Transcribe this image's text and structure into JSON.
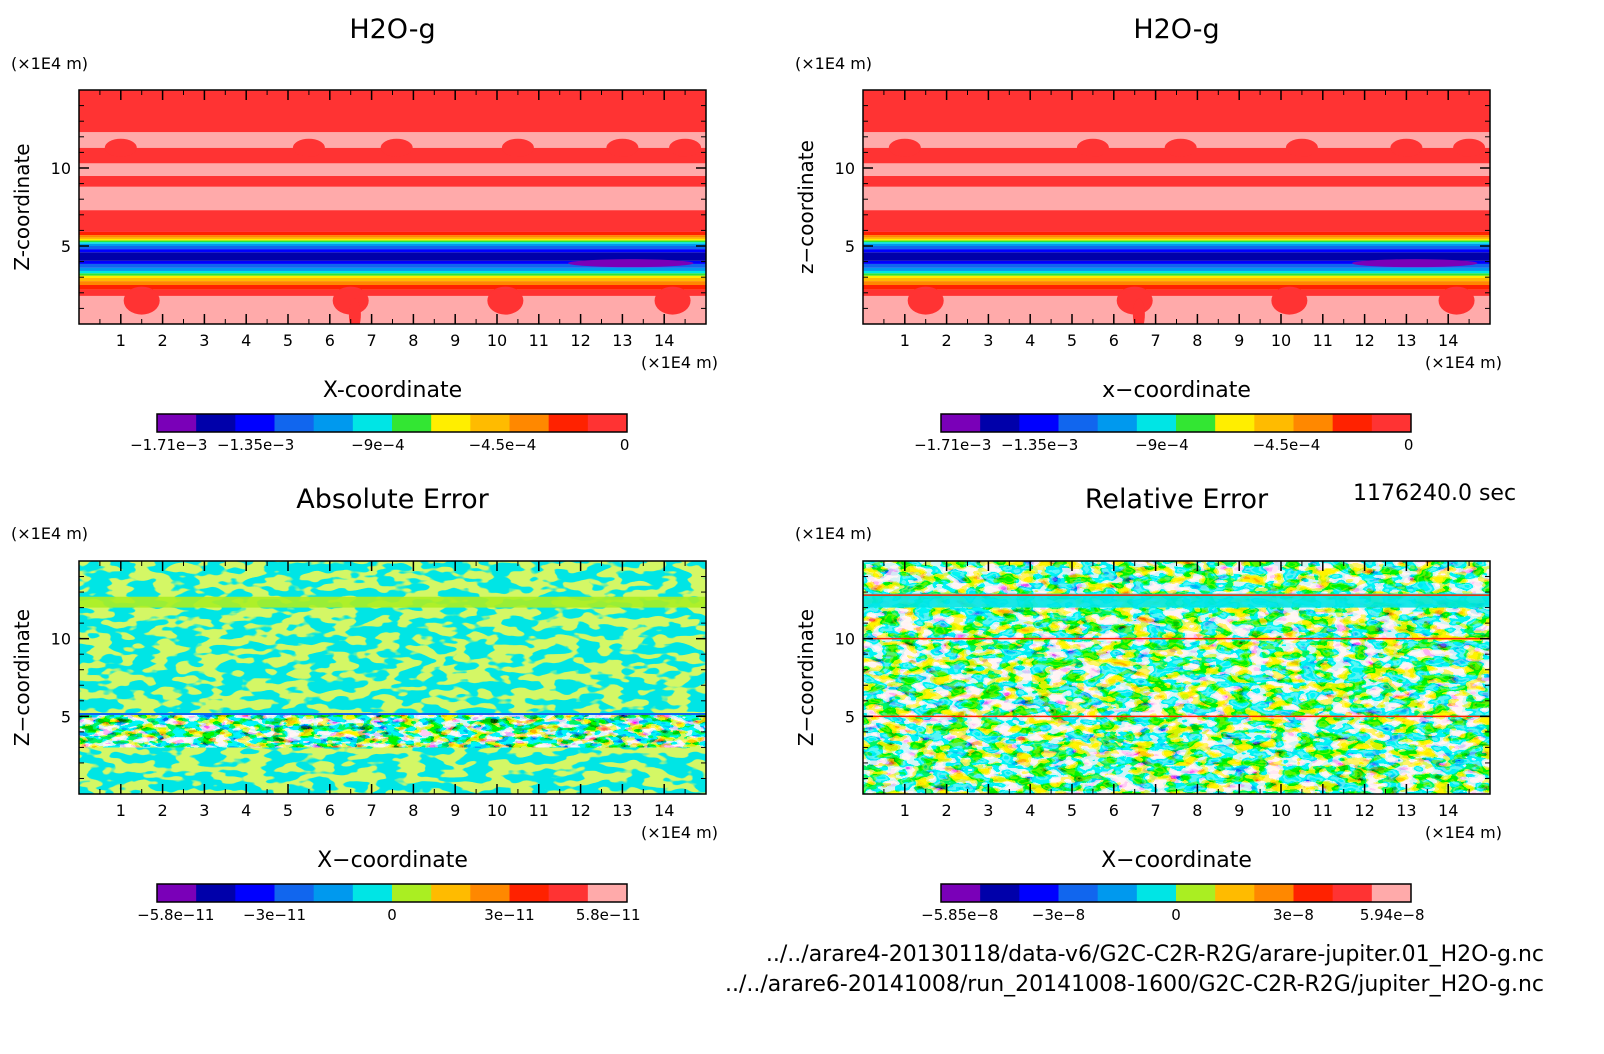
{
  "time_label": "1176240.0 sec",
  "file_paths": [
    "../../arare4-20130118/data-v6/G2C-C2R-R2G/arare-jupiter.01_H2O-g.nc",
    "../../arare6-20141008/run_20141008-1600/G2C-C2R-R2G/jupiter_H2O-g.nc"
  ],
  "colors": {
    "red": "#ff3333",
    "pink": "#ffaaaa",
    "purple": "#7a00b8",
    "navy": "#0000aa",
    "blue": "#0000ff",
    "mid_blue": "#1166ee",
    "sky_blue": "#0099ee",
    "cyan": "#00e5e5",
    "green": "#33e633",
    "yellow": "#ffee00",
    "yellow_green": "#aaee22",
    "light_orange": "#ffbb00",
    "orange": "#ff8800",
    "red_orange": "#ff2200"
  },
  "chart_data": [
    {
      "type": "heatmap",
      "title": "H2O-g",
      "xlabel": "X-coordinate",
      "ylabel": "Z-coordinate",
      "x_unit": "(×1E4 m)",
      "y_unit": "(×1E4 m)",
      "xlim": [
        0,
        15
      ],
      "ylim": [
        0,
        15
      ],
      "x_ticks": [
        1,
        2,
        3,
        4,
        5,
        6,
        7,
        8,
        9,
        10,
        11,
        12,
        13,
        14
      ],
      "y_ticks": [
        5,
        10
      ],
      "colorbar": {
        "colors": [
          "purple",
          "navy",
          "blue",
          "mid_blue",
          "sky_blue",
          "cyan",
          "green",
          "yellow",
          "light_orange",
          "orange",
          "red_orange",
          "red"
        ],
        "tick_labels": [
          "−1.71e−3",
          "−1.35e−3",
          "−9e−4",
          "−4.5e−4",
          "0"
        ],
        "tick_positions": [
          0.025,
          0.21,
          0.47,
          0.735,
          0.995
        ]
      },
      "pattern": "field"
    },
    {
      "type": "heatmap",
      "title": "H2O-g",
      "xlabel": "x−coordinate",
      "ylabel": "z−coordinate",
      "x_unit": "(×1E4 m)",
      "y_unit": "(×1E4 m)",
      "xlim": [
        0,
        15
      ],
      "ylim": [
        0,
        15
      ],
      "x_ticks": [
        1,
        2,
        3,
        4,
        5,
        6,
        7,
        8,
        9,
        10,
        11,
        12,
        13,
        14
      ],
      "y_ticks": [
        5,
        10
      ],
      "colorbar": {
        "colors": [
          "purple",
          "navy",
          "blue",
          "mid_blue",
          "sky_blue",
          "cyan",
          "green",
          "yellow",
          "light_orange",
          "orange",
          "red_orange",
          "red"
        ],
        "tick_labels": [
          "−1.71e−3",
          "−1.35e−3",
          "−9e−4",
          "−4.5e−4",
          "0"
        ],
        "tick_positions": [
          0.025,
          0.21,
          0.47,
          0.735,
          0.995
        ]
      },
      "pattern": "field"
    },
    {
      "type": "heatmap",
      "title": "Absolute Error",
      "xlabel": "X−coordinate",
      "ylabel": "Z−coordinate",
      "x_unit": "(×1E4 m)",
      "y_unit": "(×1E4 m)",
      "xlim": [
        0,
        15
      ],
      "ylim": [
        0,
        15
      ],
      "x_ticks": [
        1,
        2,
        3,
        4,
        5,
        6,
        7,
        8,
        9,
        10,
        11,
        12,
        13,
        14
      ],
      "y_ticks": [
        5,
        10
      ],
      "colorbar": {
        "colors": [
          "purple",
          "navy",
          "blue",
          "mid_blue",
          "sky_blue",
          "cyan",
          "yellow_green",
          "light_orange",
          "orange",
          "red_orange",
          "red",
          "pink"
        ],
        "tick_labels": [
          "−5.8e−11",
          "−3e−11",
          "0",
          "3e−11",
          "5.8e−11"
        ],
        "tick_positions": [
          0.04,
          0.25,
          0.5,
          0.75,
          0.96
        ]
      },
      "pattern": "abs_error"
    },
    {
      "type": "heatmap",
      "title": "Relative Error",
      "xlabel": "X−coordinate",
      "ylabel": "Z−coordinate",
      "x_unit": "(×1E4 m)",
      "y_unit": "(×1E4 m)",
      "xlim": [
        0,
        15
      ],
      "ylim": [
        0,
        15
      ],
      "x_ticks": [
        1,
        2,
        3,
        4,
        5,
        6,
        7,
        8,
        9,
        10,
        11,
        12,
        13,
        14
      ],
      "y_ticks": [
        5,
        10
      ],
      "colorbar": {
        "colors": [
          "purple",
          "navy",
          "blue",
          "mid_blue",
          "sky_blue",
          "cyan",
          "yellow_green",
          "light_orange",
          "orange",
          "red_orange",
          "red",
          "pink"
        ],
        "tick_labels": [
          "−5.85e−8",
          "−3e−8",
          "0",
          "3e−8",
          "5.94e−8"
        ],
        "tick_positions": [
          0.04,
          0.25,
          0.5,
          0.75,
          0.96
        ]
      },
      "pattern": "rel_error"
    }
  ]
}
